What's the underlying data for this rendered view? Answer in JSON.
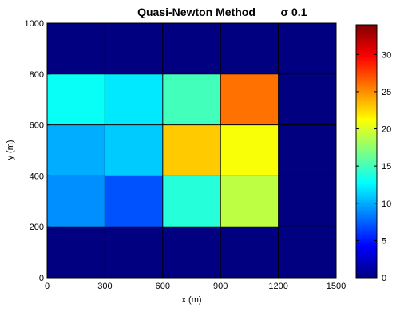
{
  "chart_data": {
    "type": "heatmap",
    "title": "Quasi-Newton Method",
    "subtitle": "σ 0.1",
    "xlabel": "x  (m)",
    "ylabel": "y (m)",
    "x_edges": [
      0,
      300,
      600,
      900,
      1200,
      1500
    ],
    "y_edges": [
      0,
      200,
      400,
      600,
      800,
      1000
    ],
    "xlim": [
      0,
      1500
    ],
    "ylim": [
      0,
      1000
    ],
    "x_ticks": [
      "0",
      "300",
      "600",
      "900",
      "1200",
      "1500"
    ],
    "y_ticks": [
      "0",
      "200",
      "400",
      "600",
      "800",
      "1000"
    ],
    "values_top_to_bottom": [
      [
        0,
        0,
        0,
        0,
        0
      ],
      [
        13,
        12,
        15,
        26,
        0
      ],
      [
        10,
        11,
        23,
        21,
        0
      ],
      [
        9,
        7,
        14,
        19,
        0
      ],
      [
        0,
        0,
        0,
        0,
        0
      ]
    ],
    "colorbar": {
      "colormap": "jet",
      "range": [
        0,
        34
      ],
      "ticks": [
        "0",
        "5",
        "10",
        "15",
        "20",
        "25",
        "30"
      ]
    },
    "grid": true
  }
}
